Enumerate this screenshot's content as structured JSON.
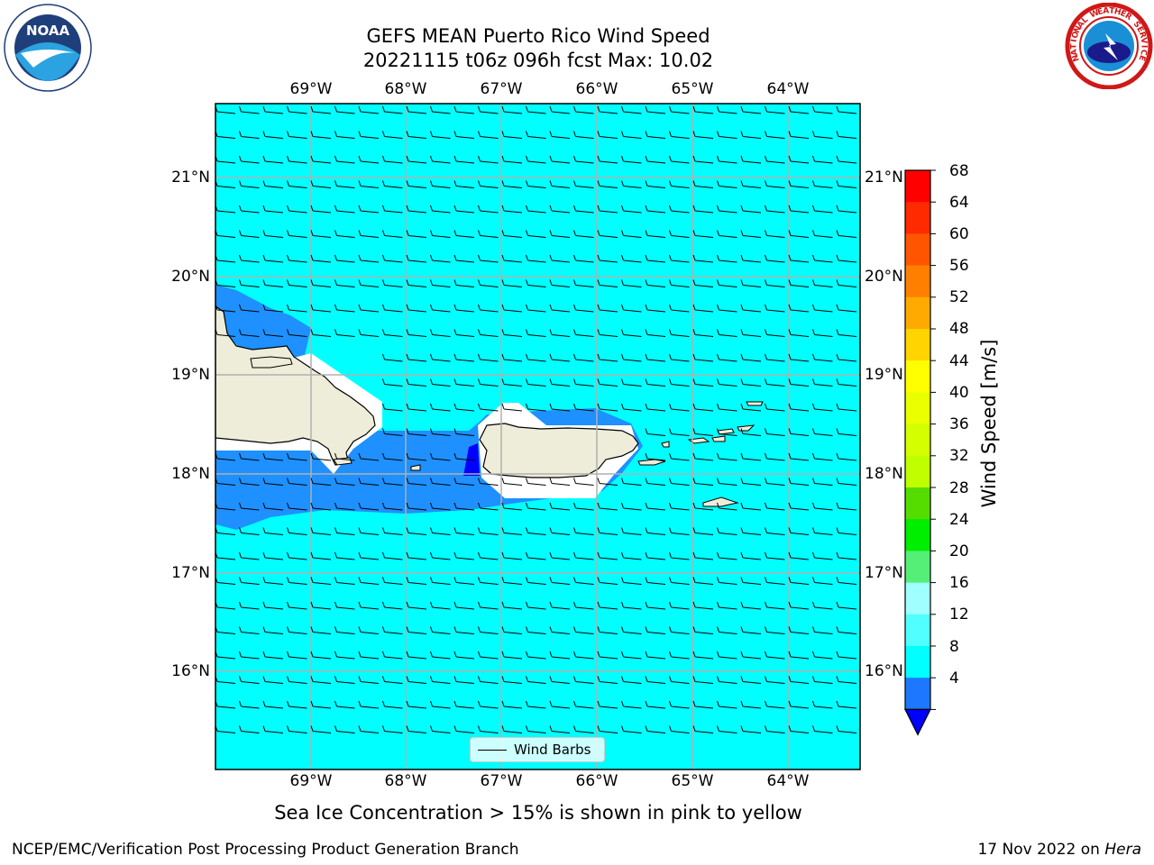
{
  "title": {
    "line1": "GEFS MEAN Puerto Rico Wind Speed",
    "line2": "20221115 t06z 096h fcst   Max: 10.02"
  },
  "map": {
    "lon_labels": [
      "69°W",
      "68°W",
      "67°W",
      "66°W",
      "65°W",
      "64°W"
    ],
    "lat_labels": [
      "21°N",
      "20°N",
      "19°N",
      "18°N",
      "17°N",
      "16°N"
    ],
    "colors": {
      "ocean_8_12": "#00ffff",
      "band_4_8": "#1e90ff",
      "band_below_4": "#0000ff",
      "land": "#eeedd9",
      "grid": "#b0b0b0"
    },
    "legend_label": "Wind Barbs"
  },
  "colorbar": {
    "label": "Wind Speed [m/s]",
    "ticks": [
      "68",
      "64",
      "60",
      "56",
      "52",
      "48",
      "44",
      "40",
      "36",
      "32",
      "28",
      "24",
      "20",
      "16",
      "12",
      "8",
      "4"
    ],
    "colors": [
      "#ff0000",
      "#ff2a00",
      "#ff5500",
      "#ff8000",
      "#ffaa00",
      "#ffd400",
      "#ffff00",
      "#eaff00",
      "#d4ff00",
      "#bfff00",
      "#55dd00",
      "#00ee00",
      "#55ee77",
      "#a0ffff",
      "#50ffff",
      "#00ffff",
      "#1e78ff"
    ],
    "extend_color": "#0000ff"
  },
  "subtitle": "Sea Ice Concentration > 15% is shown in pink to yellow",
  "footer": {
    "credit": "NCEP/EMC/Verification Post Processing Product Generation Branch",
    "date": "17 Nov 2022 on ",
    "machine": "Hera"
  },
  "logos": {
    "noaa_text": "NOAA",
    "nws_text": "NATIONAL WEATHER SERVICE"
  }
}
